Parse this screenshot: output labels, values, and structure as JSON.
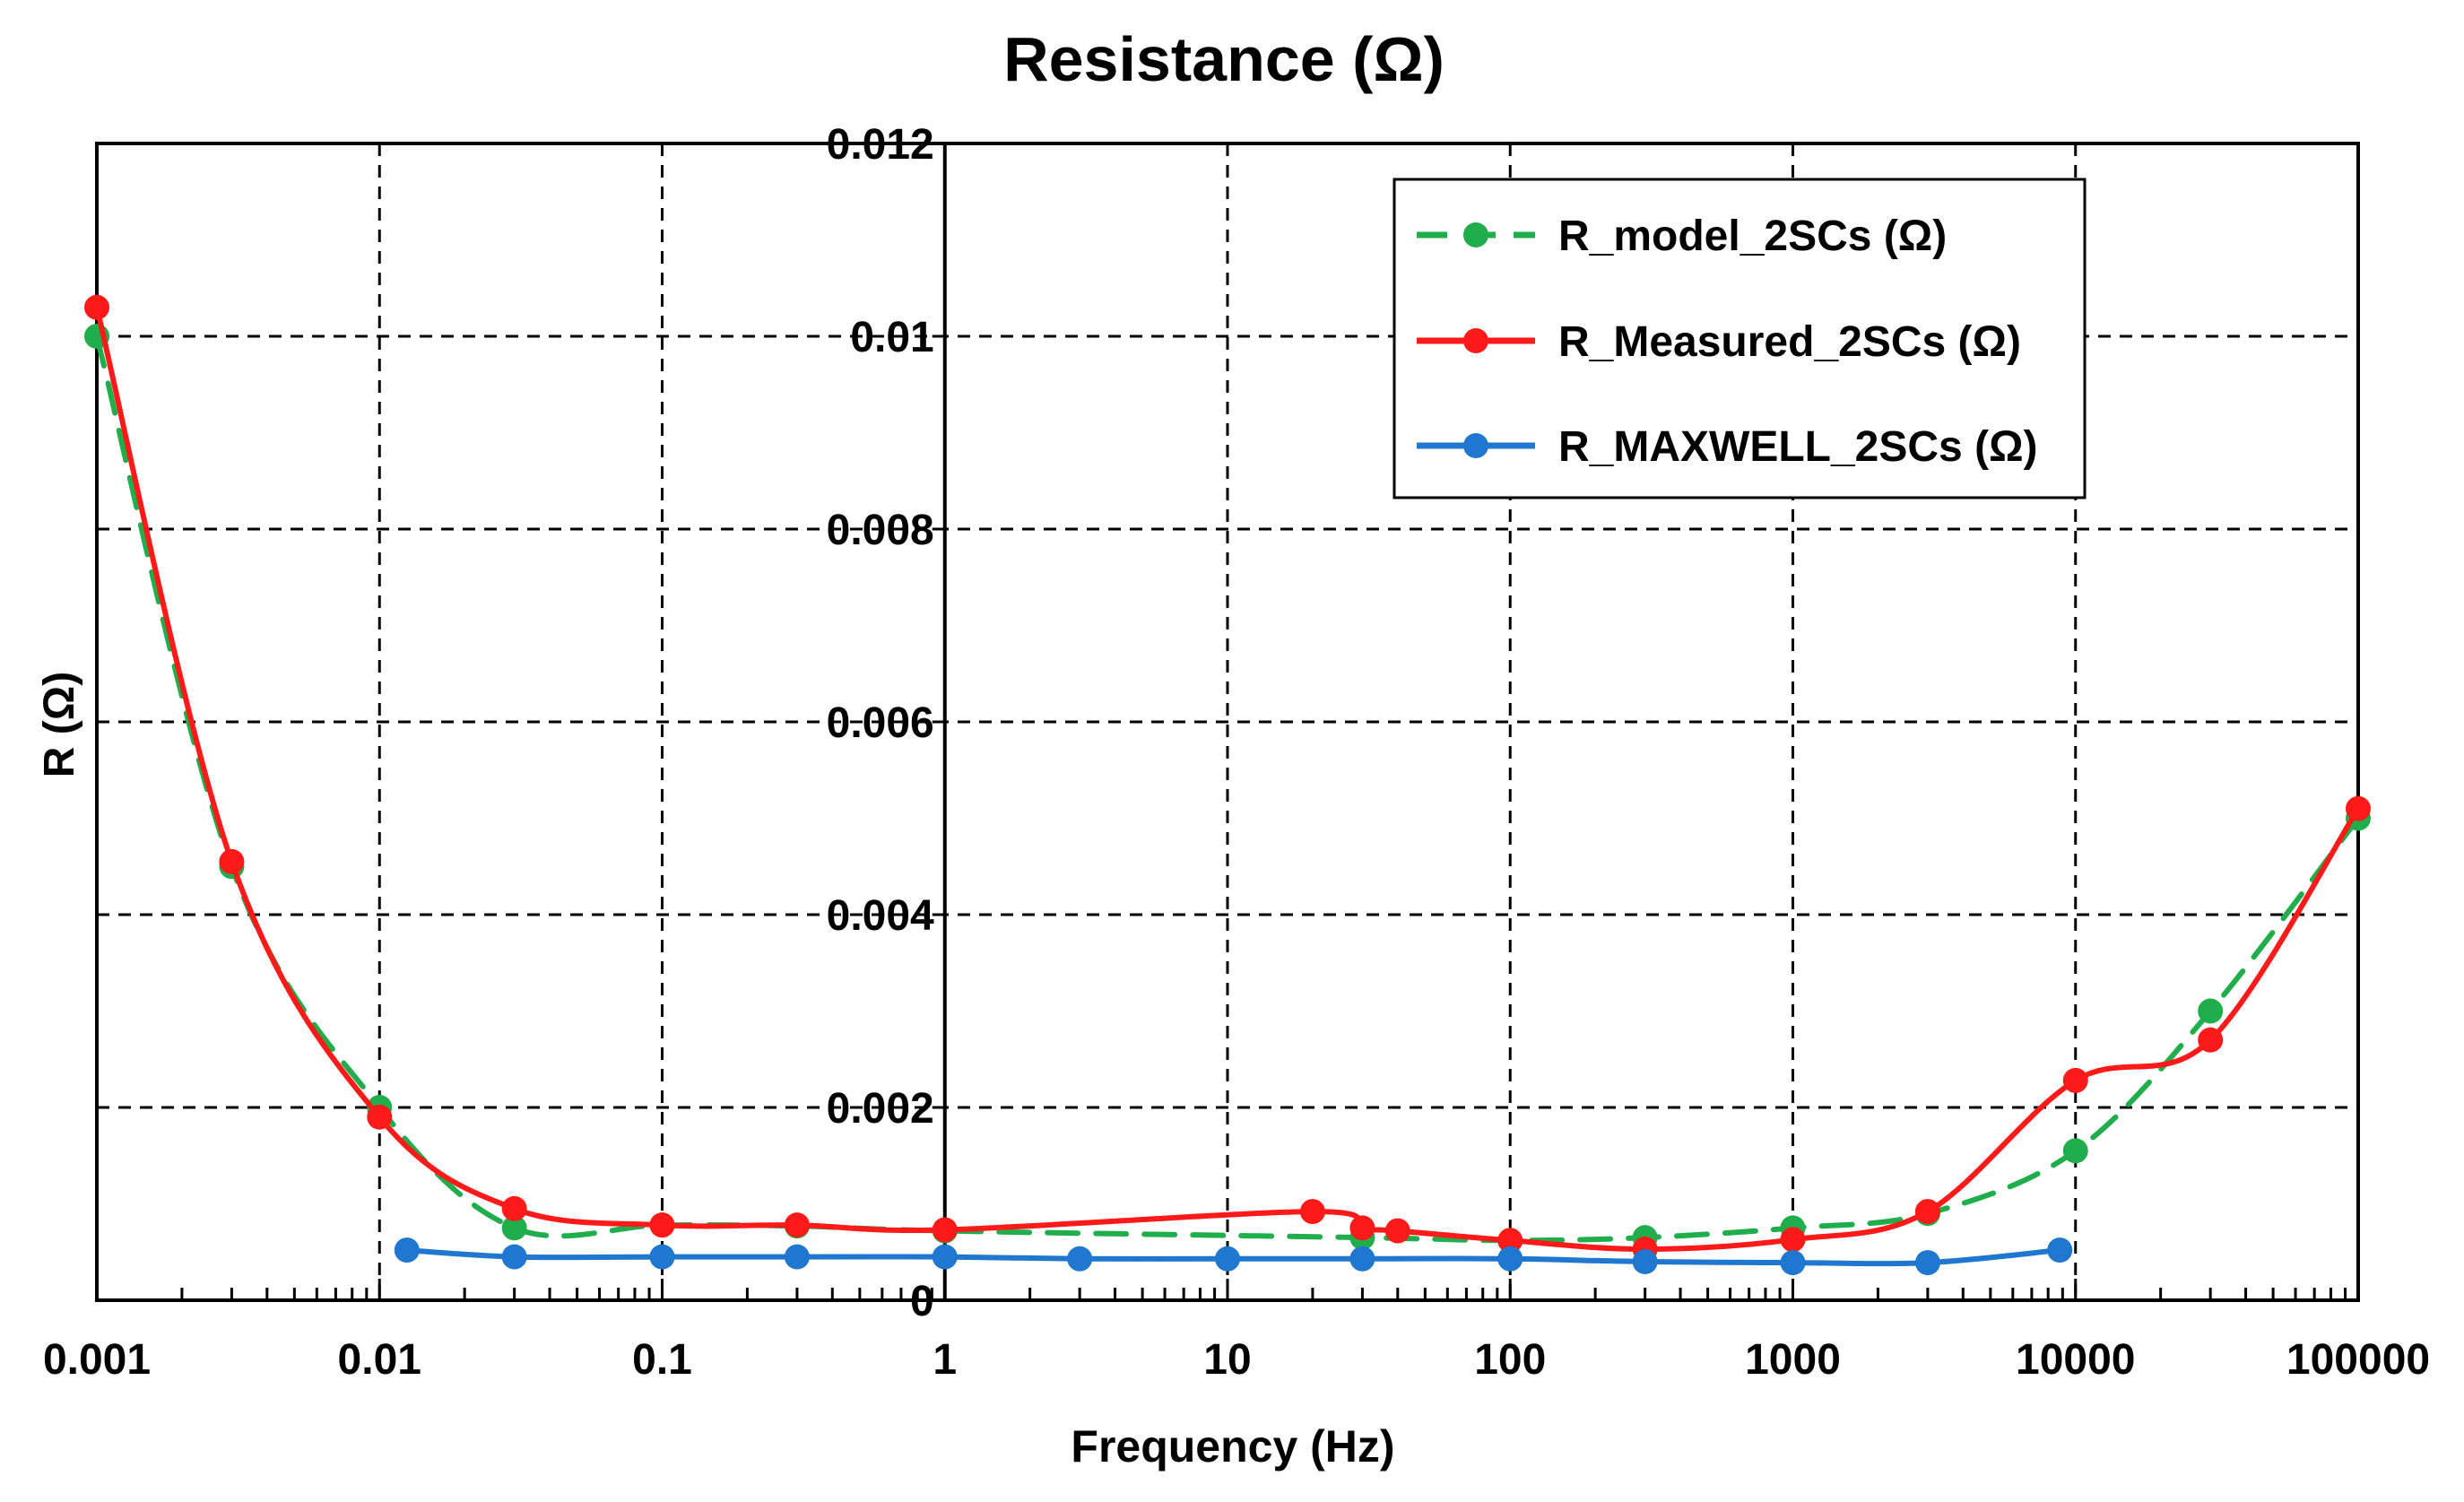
{
  "chart_data": {
    "type": "line",
    "title": "Resistance (Ω)",
    "xlabel": "Frequency (Hz)",
    "ylabel": "R (Ω)",
    "xscale": "log",
    "xlim": [
      0.001,
      100000
    ],
    "ylim": [
      0,
      0.012
    ],
    "x_ticks": [
      {
        "value": 0.001,
        "label": "0.001"
      },
      {
        "value": 0.01,
        "label": "0.01"
      },
      {
        "value": 0.1,
        "label": "0.1"
      },
      {
        "value": 1,
        "label": "1"
      },
      {
        "value": 10,
        "label": "10"
      },
      {
        "value": 100,
        "label": "100"
      },
      {
        "value": 1000,
        "label": "1000"
      },
      {
        "value": 10000,
        "label": "10000"
      },
      {
        "value": 100000,
        "label": "100000"
      }
    ],
    "y_ticks": [
      {
        "value": 0,
        "label": "0"
      },
      {
        "value": 0.002,
        "label": "0.002"
      },
      {
        "value": 0.004,
        "label": "0.004"
      },
      {
        "value": 0.006,
        "label": "0.006"
      },
      {
        "value": 0.008,
        "label": "0.008"
      },
      {
        "value": 0.01,
        "label": "0.01"
      },
      {
        "value": 0.012,
        "label": "0.012"
      }
    ],
    "grid": true,
    "legend_position": "top-right",
    "series": [
      {
        "name": "R_model_2SCs (Ω)",
        "color": "#1fae4b",
        "dashed": true,
        "x": [
          0.001,
          0.003,
          0.01,
          0.03,
          0.1,
          0.3,
          1,
          30,
          100,
          300,
          1000,
          3000,
          10000,
          30000,
          100000
        ],
        "y": [
          0.01,
          0.0045,
          0.002,
          0.00075,
          0.00078,
          0.00077,
          0.00072,
          0.00065,
          0.00062,
          0.00065,
          0.00075,
          0.0009,
          0.00155,
          0.003,
          0.005
        ]
      },
      {
        "name": "R_Measured_2SCs (Ω)",
        "color": "#ff1a1a",
        "dashed": false,
        "x": [
          0.001,
          0.003,
          0.01,
          0.03,
          0.1,
          0.3,
          1,
          20,
          30,
          40,
          100,
          300,
          1000,
          3000,
          10000,
          30000,
          100000
        ],
        "y": [
          0.0103,
          0.00455,
          0.0019,
          0.00095,
          0.00078,
          0.00078,
          0.00073,
          0.00092,
          0.00075,
          0.00072,
          0.00062,
          0.00053,
          0.00063,
          0.00092,
          0.00228,
          0.0027,
          0.0051
        ]
      },
      {
        "name": "R_MAXWELL_2SCs (Ω)",
        "color": "#1f77d0",
        "dashed": false,
        "x": [
          0.0125,
          0.03,
          0.1,
          0.3,
          1,
          3,
          10,
          30,
          100,
          300,
          1000,
          3000,
          8800
        ],
        "y": [
          0.00052,
          0.00045,
          0.00045,
          0.00045,
          0.00045,
          0.00043,
          0.00043,
          0.00043,
          0.00043,
          0.0004,
          0.00039,
          0.00039,
          0.00052
        ]
      }
    ]
  }
}
